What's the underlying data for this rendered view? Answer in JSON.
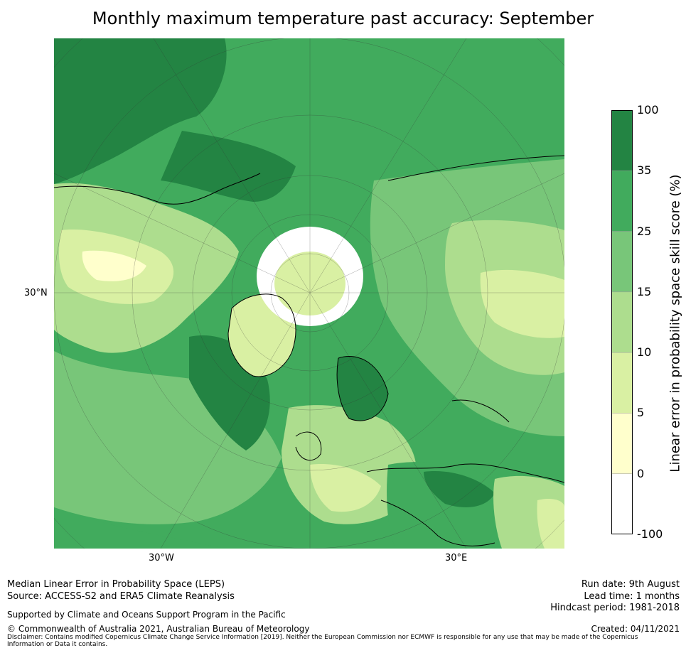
{
  "title": "Monthly maximum temperature past accuracy: September",
  "map": {
    "lat_label": "30°N",
    "lon_labels": [
      "30°W",
      "30°E"
    ],
    "colors": {
      "ocean_dark": "#238443",
      "green_mid": "#41ab5d",
      "green_light": "#78c679",
      "green_pale": "#addd8e",
      "yellow_green": "#d9f0a3",
      "cream": "#ffffcc",
      "white": "#ffffff"
    }
  },
  "colorbar": {
    "label": "Linear error in probability space skill score (%)",
    "ticks": [
      "100",
      "35",
      "25",
      "15",
      "10",
      "5",
      "0",
      "-100"
    ],
    "bands": [
      "#238443",
      "#41ab5d",
      "#78c679",
      "#addd8e",
      "#d9f0a3",
      "#ffffcc",
      "#ffffff"
    ]
  },
  "footer": {
    "left_line1": "Median Linear Error in Probability Space (LEPS)",
    "left_line2": "Source: ACCESS-S2 and ERA5 Climate Reanalysis",
    "supported": "Supported by Climate and Oceans Support Program in the Pacific",
    "copyright": "© Commonwealth of Australia 2021, Australian Bureau of Meteorology",
    "run_date": "Run date: 9th August",
    "lead_time": "Lead time: 1 months",
    "hindcast": "Hindcast period: 1981-2018",
    "created": "Created: 04/11/2021",
    "disclaimer": "Disclaimer: Contains modified Copernicus Climate Change Service Information [2019]. Neither the European Commission nor ECMWF is responsible for any use that may be made of the Copernicus Information or Data it contains."
  }
}
